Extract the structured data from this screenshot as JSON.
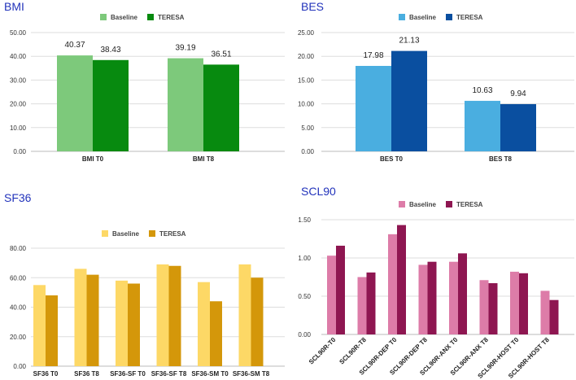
{
  "chart_data": [
    {
      "type": "bar",
      "title": "BMI",
      "categories": [
        "BMI T0",
        "BMI T8"
      ],
      "series": [
        {
          "name": "Baseline",
          "color": "#7dc97b",
          "values": [
            40.37,
            39.19
          ]
        },
        {
          "name": "TERESA",
          "color": "#078a0f",
          "values": [
            38.43,
            36.51
          ]
        }
      ],
      "ylim": [
        0,
        50
      ],
      "yticks": [
        "0.00",
        "10.00",
        "20.00",
        "30.00",
        "40.00",
        "50.00"
      ],
      "data_labels": [
        "40.37",
        "38.43",
        "39.19",
        "36.51"
      ],
      "legend": "top",
      "grid": true
    },
    {
      "type": "bar",
      "title": "BES",
      "categories": [
        "BES T0",
        "BES T8"
      ],
      "series": [
        {
          "name": "Baseline",
          "color": "#4aaee0",
          "values": [
            17.98,
            10.63
          ]
        },
        {
          "name": "TERESA",
          "color": "#0a4fa0",
          "values": [
            21.13,
            9.94
          ]
        }
      ],
      "ylim": [
        0,
        25
      ],
      "yticks": [
        "0.00",
        "5.00",
        "10.00",
        "15.00",
        "20.00",
        "25.00"
      ],
      "data_labels": [
        "17.98",
        "21.13",
        "10.63",
        "9.94"
      ],
      "legend": "top",
      "grid": true
    },
    {
      "type": "bar",
      "title": "SF36",
      "categories": [
        "SF36 T0",
        "SF36 T8",
        "SF36-SF T0",
        "SF36-SF T8",
        "SF36-SM T0",
        "SF36-SM T8"
      ],
      "series": [
        {
          "name": "Baseline",
          "color": "#fdd866",
          "values": [
            55,
            66,
            58,
            69,
            57,
            69
          ]
        },
        {
          "name": "TERESA",
          "color": "#d4970a",
          "values": [
            48,
            62,
            56,
            68,
            44,
            60
          ]
        }
      ],
      "ylim": [
        0,
        80
      ],
      "yticks": [
        "0.00",
        "20.00",
        "40.00",
        "60.00",
        "80.00"
      ],
      "legend": "top",
      "grid": true
    },
    {
      "type": "bar",
      "title": "SCL90",
      "categories": [
        "SCL90R-T0",
        "SCL90R-T8",
        "SCL90R-DEP T0",
        "SCL90R-DEP T8",
        "SCL90R-ANX T0",
        "SCL90R-ANX T8",
        "SCL90R-HOST T0",
        "SCL90R-HOST T8"
      ],
      "series": [
        {
          "name": "Baseline",
          "color": "#dd7ca8",
          "values": [
            1.03,
            0.75,
            1.31,
            0.91,
            0.95,
            0.71,
            0.82,
            0.57
          ]
        },
        {
          "name": "TERESA",
          "color": "#8e1651",
          "values": [
            1.16,
            0.81,
            1.43,
            0.95,
            1.06,
            0.67,
            0.8,
            0.45
          ]
        }
      ],
      "ylim": [
        0,
        1.5
      ],
      "yticks": [
        "0.00",
        "0.50",
        "1.00",
        "1.50"
      ],
      "legend": "top",
      "grid": true
    }
  ]
}
